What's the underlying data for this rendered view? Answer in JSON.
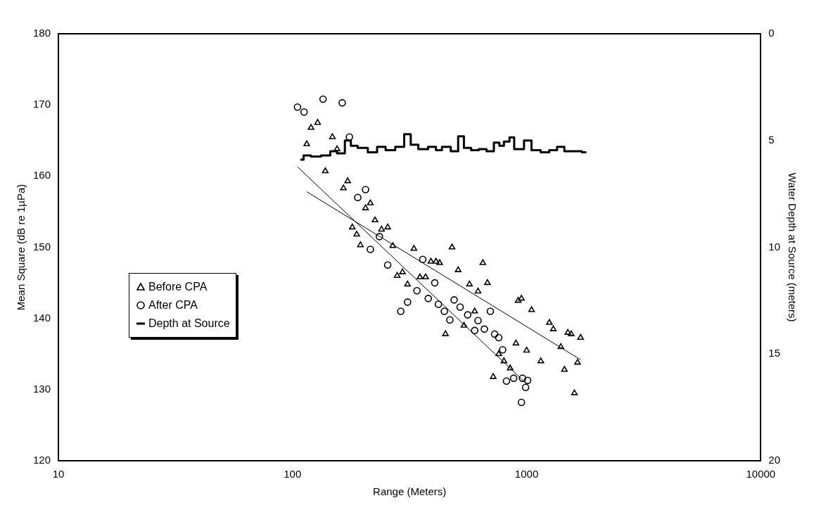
{
  "chart_data": {
    "type": "scatter",
    "xlabel": "Range (Meters)",
    "ylabel": "Mean Square (dB re 1µPa)",
    "y2label": "Water Depth at Source (meters)",
    "log": "x",
    "xlim": [
      10,
      10000
    ],
    "xticks": [
      10,
      100,
      1000,
      10000
    ],
    "ylim": [
      120,
      180
    ],
    "yticks": [
      120,
      130,
      140,
      150,
      160,
      170,
      180
    ],
    "y2lim": [
      20,
      0
    ],
    "y2ticks": [
      0,
      5,
      10,
      15,
      20
    ],
    "grid": false,
    "legend": "left",
    "series": [
      {
        "name": "Before CPA",
        "marker": "triangle",
        "color": "#000000",
        "x": [
          115,
          120,
          128,
          138,
          148,
          155,
          165,
          172,
          180,
          188,
          195,
          205,
          215,
          225,
          240,
          255,
          268,
          280,
          295,
          310,
          330,
          350,
          370,
          390,
          410,
          425,
          450,
          480,
          510,
          540,
          570,
          600,
          620,
          650,
          680,
          720,
          760,
          800,
          850,
          900,
          920,
          950,
          1000,
          1050,
          1150,
          1250,
          1300,
          1400,
          1450,
          1500,
          1550,
          1600,
          1650,
          1700
        ],
        "values": [
          164.5,
          166.8,
          167.5,
          160.7,
          165.5,
          163.8,
          158.3,
          159.3,
          152.8,
          151.8,
          150.3,
          155.5,
          156.2,
          153.8,
          152.5,
          152.8,
          150.2,
          146,
          146.5,
          144.8,
          149.8,
          145.8,
          145.8,
          148,
          148,
          147.8,
          137.8,
          150,
          146.8,
          139,
          144.8,
          141,
          143.8,
          147.8,
          145,
          131.8,
          135,
          134,
          133,
          136.5,
          142.5,
          142.8,
          135.5,
          141.2,
          134,
          139.4,
          138.5,
          136,
          132.8,
          138,
          137.8,
          129.5,
          133.8,
          137.3
        ]
      },
      {
        "name": "After CPA",
        "marker": "circle",
        "color": "#000000",
        "x": [
          105,
          112,
          135,
          163,
          175,
          190,
          205,
          215,
          235,
          255,
          290,
          310,
          340,
          360,
          380,
          405,
          420,
          445,
          470,
          490,
          520,
          560,
          600,
          620,
          660,
          700,
          730,
          760,
          790,
          820,
          880,
          950,
          960,
          990,
          1010
        ],
        "values": [
          169.7,
          169,
          170.8,
          170.3,
          165.5,
          157,
          158.1,
          149.7,
          151.5,
          147.5,
          141,
          142.3,
          143.9,
          148.3,
          142.8,
          145,
          142,
          141,
          139.8,
          142.6,
          141.6,
          140.5,
          138.3,
          139.7,
          138.5,
          141,
          137.8,
          137.3,
          135.6,
          131.2,
          131.6,
          128.2,
          131.6,
          130.3,
          131.3
        ]
      },
      {
        "name": "Depth at Source",
        "type": "step",
        "axis": "y2",
        "marker": "none",
        "color": "#000000",
        "x": [
          108,
          115,
          125,
          140,
          150,
          160,
          175,
          180,
          200,
          220,
          240,
          260,
          290,
          310,
          330,
          360,
          400,
          420,
          450,
          500,
          520,
          560,
          600,
          650,
          700,
          750,
          780,
          820,
          870,
          900,
          950,
          1000,
          1100,
          1200,
          1300,
          1400,
          1500,
          1650,
          1800
        ],
        "values": [
          5.9,
          5.7,
          5.75,
          5.7,
          5.5,
          5.6,
          5.0,
          5.25,
          5.35,
          5.55,
          5.3,
          5.45,
          5.3,
          4.7,
          5.2,
          5.4,
          5.3,
          5.45,
          5.3,
          5.5,
          4.8,
          5.35,
          5.45,
          5.4,
          5.5,
          5.1,
          5.25,
          5.05,
          4.85,
          5.4,
          5.4,
          5.0,
          5.45,
          5.55,
          5.45,
          5.3,
          5.5,
          5.5,
          5.55
        ]
      },
      {
        "type": "line",
        "marker": "none",
        "color": "#000000",
        "x": [
          115,
          1700
        ],
        "values": [
          157.8,
          134.2
        ]
      },
      {
        "type": "line",
        "marker": "none",
        "color": "#000000",
        "x": [
          105,
          1000
        ],
        "values": [
          161.3,
          130.8
        ]
      }
    ]
  }
}
